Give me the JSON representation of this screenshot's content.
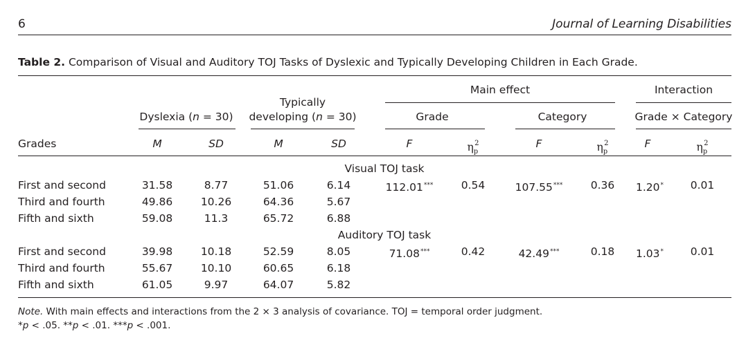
{
  "page": {
    "number": "6",
    "journal": "Journal of Learning Disabilities"
  },
  "caption": {
    "label": "Table 2.",
    "text": "Comparison of Visual and Auditory TOJ Tasks of Dyslexic and Typically Developing Children in Each Grade."
  },
  "headers": {
    "grades": "Grades",
    "dyslexia_prefix": "Dyslexia (",
    "n_symbol": "n",
    "dyslexia_suffix": " = 30)",
    "typically_line1": "Typically",
    "typically_prefix": "developing (",
    "typically_suffix": " = 30)",
    "main_effect": "Main effect",
    "interaction": "Interaction",
    "grade": "Grade",
    "category": "Category",
    "grade_x_category": "Grade × Category",
    "M": "M",
    "SD": "SD",
    "F": "F",
    "eta_symbol": "η",
    "eta_sub": "p",
    "eta_sup": "2"
  },
  "sections": [
    {
      "title": "Visual TOJ task",
      "rows": [
        {
          "grade": "First and second",
          "dys_m": "31.58",
          "dys_sd": "8.77",
          "td_m": "51.06",
          "td_sd": "6.14",
          "grade_f": "112.01",
          "grade_f_sig": "***",
          "grade_eta": "0.54",
          "cat_f": "107.55",
          "cat_f_sig": "***",
          "cat_eta": "0.36",
          "int_f": "1.20",
          "int_f_sig": "*",
          "int_eta": "0.01"
        },
        {
          "grade": "Third and fourth",
          "dys_m": "49.86",
          "dys_sd": "10.26",
          "td_m": "64.36",
          "td_sd": "5.67"
        },
        {
          "grade": "Fifth and sixth",
          "dys_m": "59.08",
          "dys_sd": "11.3",
          "td_m": "65.72",
          "td_sd": "6.88"
        }
      ]
    },
    {
      "title": "Auditory TOJ task",
      "rows": [
        {
          "grade": "First and second",
          "dys_m": "39.98",
          "dys_sd": "10.18",
          "td_m": "52.59",
          "td_sd": "8.05",
          "grade_f": "71.08",
          "grade_f_sig": "***",
          "grade_eta": "0.42",
          "cat_f": "42.49",
          "cat_f_sig": "***",
          "cat_eta": "0.18",
          "int_f": "1.03",
          "int_f_sig": "*",
          "int_eta": "0.01"
        },
        {
          "grade": "Third and fourth",
          "dys_m": "55.67",
          "dys_sd": "10.10",
          "td_m": "60.65",
          "td_sd": "6.18"
        },
        {
          "grade": "Fifth and sixth",
          "dys_m": "61.05",
          "dys_sd": "9.97",
          "td_m": "64.07",
          "td_sd": "5.82"
        }
      ]
    }
  ],
  "note": {
    "label": "Note.",
    "text": " With main effects and interactions from the 2 × 3 analysis of covariance. TOJ = temporal order judgment.",
    "sig_line": [
      {
        "stars": "*",
        "p": "p",
        "text": " < .05. "
      },
      {
        "stars": "**",
        "p": "p",
        "text": " < .01. "
      },
      {
        "stars": "***",
        "p": "p",
        "text": " < .001."
      }
    ]
  }
}
